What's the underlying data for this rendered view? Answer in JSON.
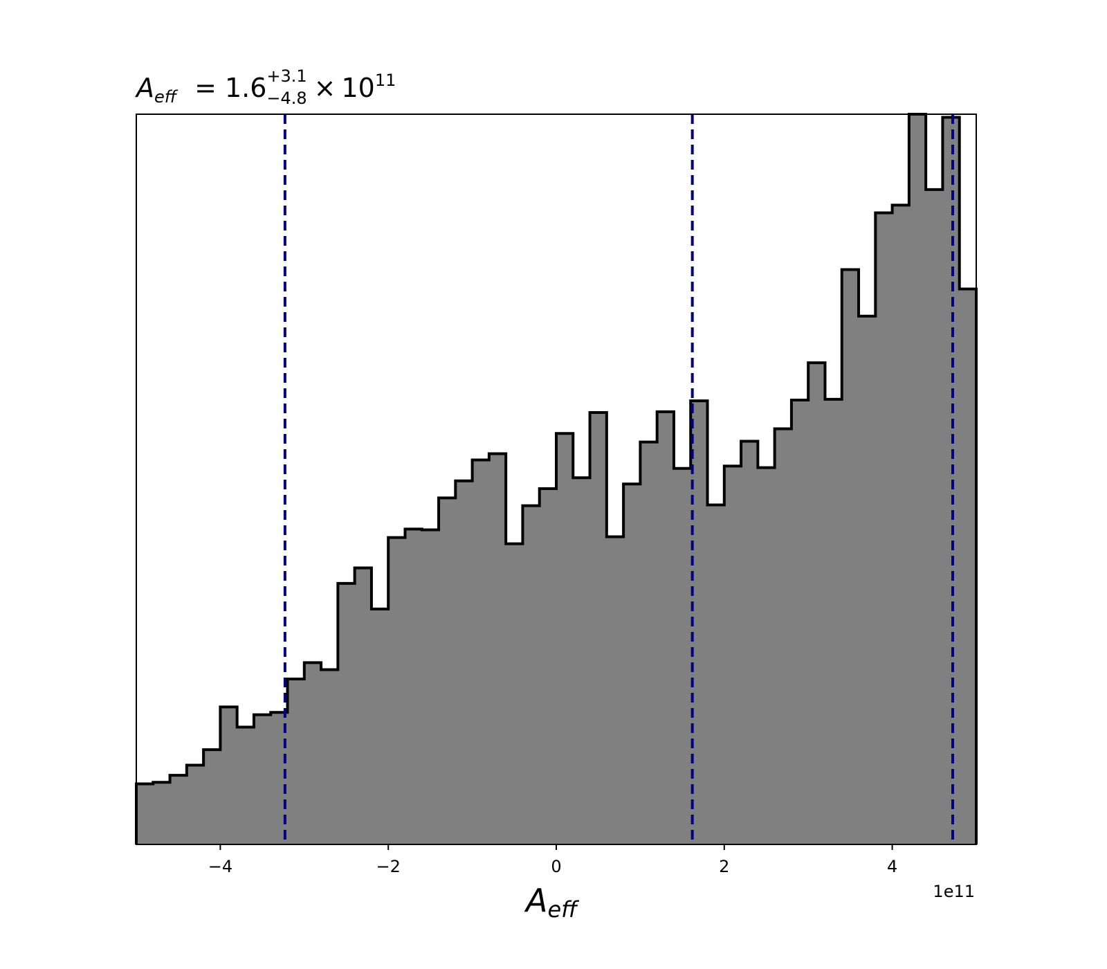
{
  "chart_data": {
    "type": "histogram",
    "title": {
      "variable": "A",
      "variable_sub": "eff",
      "equals": "=",
      "median": "1.6",
      "plus": "+3.1",
      "minus": "−4.8",
      "times": "×",
      "base": "10",
      "exponent": "11"
    },
    "xlabel": {
      "variable": "A",
      "variable_sub": "eff"
    },
    "x_offset_label": "1e11",
    "xlim": [
      -5.0,
      5.0
    ],
    "ylim": [
      0,
      94
    ],
    "x_ticks": [
      {
        "value": -4,
        "label": "−4"
      },
      {
        "value": -2,
        "label": "−2"
      },
      {
        "value": 0,
        "label": "0"
      },
      {
        "value": 2,
        "label": "2"
      },
      {
        "value": 4,
        "label": "4"
      }
    ],
    "bin_edges": [
      -5.0,
      -4.8,
      -4.6,
      -4.4,
      -4.2,
      -4.0,
      -3.8,
      -3.6,
      -3.4,
      -3.2,
      -3.0,
      -2.8,
      -2.6,
      -2.4,
      -2.2,
      -2.0,
      -1.8,
      -1.6,
      -1.4,
      -1.2,
      -1.0,
      -0.8,
      -0.6,
      -0.4,
      -0.2,
      0.0,
      0.2,
      0.4,
      0.6,
      0.8,
      1.0,
      1.2,
      1.4,
      1.6,
      1.8,
      2.0,
      2.2,
      2.4,
      2.6,
      2.8,
      3.0,
      3.2,
      3.4,
      3.6,
      3.8,
      4.0,
      4.2,
      4.4,
      4.6,
      4.8,
      5.0
    ],
    "counts": [
      7.8,
      8.0,
      8.9,
      10.2,
      12.2,
      17.7,
      15.1,
      16.7,
      17.0,
      21.3,
      23.4,
      22.5,
      33.6,
      35.6,
      30.3,
      39.5,
      40.6,
      40.5,
      44.6,
      46.8,
      49.5,
      50.3,
      38.7,
      43.6,
      45.8,
      52.9,
      47.2,
      55.6,
      39.6,
      46.4,
      51.8,
      55.7,
      48.4,
      57.1,
      43.7,
      48.7,
      51.9,
      48.5,
      53.5,
      57.2,
      62.0,
      57.3,
      74.0,
      68.0,
      81.3,
      82.3,
      94.0,
      84.3,
      93.6,
      71.5
    ],
    "vlines": [
      {
        "x": -3.23,
        "style": "dashed"
      },
      {
        "x": 1.62,
        "style": "dashed"
      },
      {
        "x": 4.72,
        "style": "dashed"
      }
    ],
    "hist_fill_color": "#808080",
    "hist_edge_color": "#000000",
    "vline_color": "#000080",
    "grid": false,
    "legend": "none"
  }
}
